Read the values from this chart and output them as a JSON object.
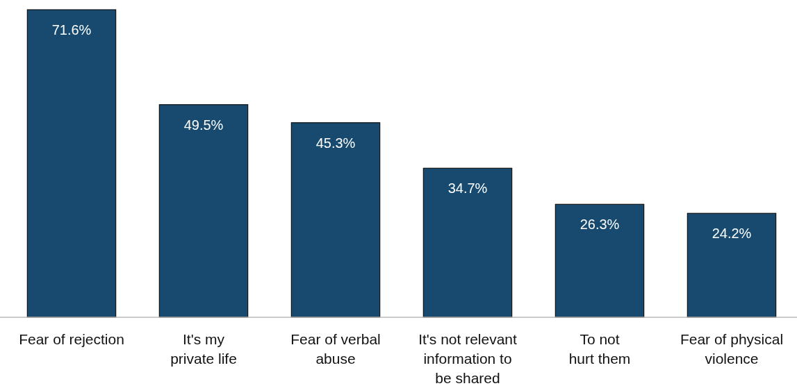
{
  "chart_data": {
    "type": "bar",
    "categories": [
      "Fear of rejection",
      "It's my\nprivate life",
      "Fear of verbal\nabuse",
      "It's not relevant\ninformation to\nbe shared",
      "To not\nhurt them",
      "Fear of physical\nviolence"
    ],
    "values": [
      71.6,
      49.5,
      45.3,
      34.7,
      26.3,
      24.2
    ],
    "value_labels": [
      "71.6%",
      "49.5%",
      "45.3%",
      "34.7%",
      "26.3%",
      "24.2%"
    ],
    "color": "#174a6e",
    "grid": false
  }
}
